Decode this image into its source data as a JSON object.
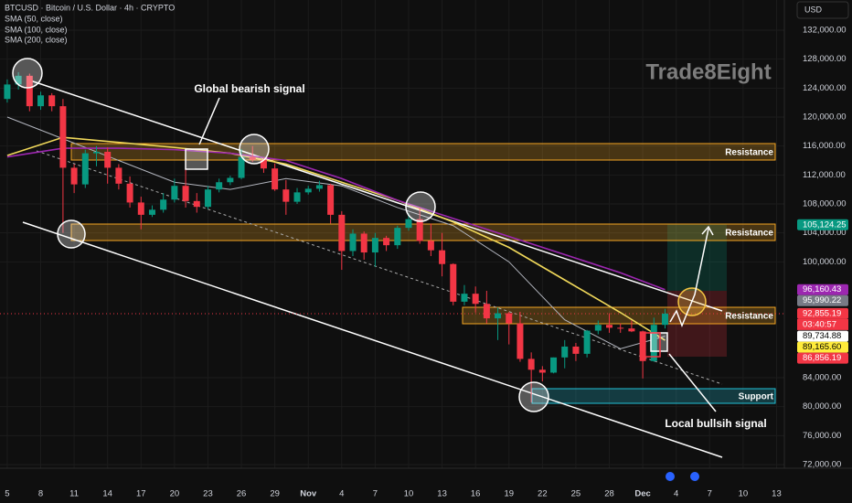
{
  "chart_data": {
    "type": "candlestick",
    "header": [
      "BTCUSD · Bitcoin / U.S. Dollar · 4h · CRYPTO",
      "SMA (50, close)",
      "SMA (100, close)",
      "SMA (200, close)"
    ],
    "currency": "USD",
    "watermark": "Trade8Eight",
    "up_color": "#089981",
    "down_color": "#f23645",
    "xlim": [
      -0.65,
      69.7
    ],
    "ylim": [
      71495,
      136168
    ],
    "xticks": [
      {
        "value": 0,
        "label": "5"
      },
      {
        "value": 3,
        "label": "8"
      },
      {
        "value": 6,
        "label": "11"
      },
      {
        "value": 9,
        "label": "14"
      },
      {
        "value": 12,
        "label": "17"
      },
      {
        "value": 15,
        "label": "20"
      },
      {
        "value": 18,
        "label": "23"
      },
      {
        "value": 21,
        "label": "26"
      },
      {
        "value": 24,
        "label": "29"
      },
      {
        "value": 27,
        "label": "Nov"
      },
      {
        "value": 30,
        "label": "4"
      },
      {
        "value": 33,
        "label": "7"
      },
      {
        "value": 36,
        "label": "10"
      },
      {
        "value": 39,
        "label": "13"
      },
      {
        "value": 42,
        "label": "16"
      },
      {
        "value": 45,
        "label": "19"
      },
      {
        "value": 48,
        "label": "22"
      },
      {
        "value": 51,
        "label": "25"
      },
      {
        "value": 54,
        "label": "28"
      },
      {
        "value": 57,
        "label": "Dec"
      },
      {
        "value": 60,
        "label": "4"
      },
      {
        "value": 63,
        "label": "7"
      },
      {
        "value": 66,
        "label": "10"
      },
      {
        "value": 69,
        "label": "13"
      }
    ],
    "yticks": [
      {
        "value": 132000,
        "label": "132,000.00"
      },
      {
        "value": 128000,
        "label": "128,000.00"
      },
      {
        "value": 124000,
        "label": "124,000.00"
      },
      {
        "value": 120000,
        "label": "120,000.00"
      },
      {
        "value": 116000,
        "label": "116,000.00"
      },
      {
        "value": 112000,
        "label": "112,000.00"
      },
      {
        "value": 108000,
        "label": "108,000.00"
      },
      {
        "value": 104000,
        "label": "104,000.00"
      },
      {
        "value": 100000,
        "label": "100,000.00"
      },
      {
        "value": 84000,
        "label": "84,000.00"
      },
      {
        "value": 80000,
        "label": "80,000.00"
      },
      {
        "value": 76000,
        "label": "76,000.00"
      },
      {
        "value": 72000,
        "label": "72,000.00"
      }
    ],
    "candles": [
      [
        0,
        122500,
        125200,
        122000,
        124500
      ],
      [
        1,
        124500,
        126200,
        123800,
        125700
      ],
      [
        2,
        125700,
        126000,
        120800,
        121500
      ],
      [
        3,
        121500,
        123500,
        121000,
        123000
      ],
      [
        4,
        123000,
        123300,
        120800,
        121500
      ],
      [
        5,
        121500,
        122500,
        104000,
        113000
      ],
      [
        6,
        113000,
        113500,
        109500,
        110700
      ],
      [
        7,
        110700,
        115500,
        110200,
        115000
      ],
      [
        8,
        115000,
        116000,
        113200,
        115200
      ],
      [
        9,
        115200,
        115800,
        110800,
        113000
      ],
      [
        10,
        113000,
        113500,
        110000,
        110800
      ],
      [
        11,
        110800,
        111800,
        107500,
        108200
      ],
      [
        12,
        108200,
        109000,
        104500,
        106500
      ],
      [
        13,
        106500,
        107800,
        106200,
        107200
      ],
      [
        14,
        107200,
        109500,
        106800,
        108600
      ],
      [
        15,
        108600,
        111500,
        108200,
        110500
      ],
      [
        16,
        110500,
        114000,
        107500,
        108400
      ],
      [
        17,
        108400,
        109500,
        106800,
        107600
      ],
      [
        18,
        107600,
        110500,
        107300,
        110000
      ],
      [
        19,
        110000,
        111500,
        109600,
        111000
      ],
      [
        20,
        111000,
        111900,
        110600,
        111600
      ],
      [
        21,
        111600,
        115600,
        111400,
        114500
      ],
      [
        22,
        114500,
        116000,
        113800,
        114100
      ],
      [
        23,
        114100,
        114400,
        112300,
        112900
      ],
      [
        24,
        112900,
        113600,
        109800,
        110000
      ],
      [
        25,
        110000,
        111300,
        106500,
        108300
      ],
      [
        26,
        108300,
        110200,
        108000,
        109600
      ],
      [
        27,
        109600,
        110500,
        109300,
        110100
      ],
      [
        28,
        110100,
        111200,
        109700,
        110600
      ],
      [
        29,
        110600,
        110800,
        105300,
        106500
      ],
      [
        30,
        106500,
        107000,
        98900,
        101500
      ],
      [
        31,
        101500,
        104500,
        100800,
        103900
      ],
      [
        32,
        103900,
        104200,
        100300,
        101300
      ],
      [
        33,
        101300,
        104000,
        99300,
        103300
      ],
      [
        34,
        103300,
        103600,
        101500,
        102300
      ],
      [
        35,
        102300,
        105000,
        101800,
        104700
      ],
      [
        36,
        104700,
        106700,
        104300,
        105900
      ],
      [
        37,
        105900,
        107500,
        102500,
        102900
      ],
      [
        38,
        102900,
        105300,
        100800,
        101600
      ],
      [
        39,
        101600,
        104000,
        98000,
        99700
      ],
      [
        40,
        99700,
        99800,
        94000,
        94500
      ],
      [
        41,
        94500,
        96800,
        94000,
        95600
      ],
      [
        42,
        95600,
        96600,
        93000,
        94200
      ],
      [
        43,
        94200,
        96000,
        91500,
        92200
      ],
      [
        44,
        92200,
        93700,
        89200,
        92900
      ],
      [
        45,
        92900,
        93100,
        88600,
        91500
      ],
      [
        46,
        91500,
        93100,
        86200,
        86600
      ],
      [
        47,
        86600,
        87500,
        80600,
        85100
      ],
      [
        48,
        85100,
        85600,
        83500,
        84700
      ],
      [
        49,
        84700,
        86800,
        84600,
        86800
      ],
      [
        50,
        86800,
        89200,
        85300,
        88300
      ],
      [
        51,
        88300,
        88800,
        86300,
        87300
      ],
      [
        52,
        87300,
        90600,
        86800,
        90500
      ],
      [
        53,
        90500,
        91900,
        90000,
        91300
      ],
      [
        54,
        91300,
        92900,
        90200,
        90900
      ],
      [
        55,
        90900,
        91500,
        90200,
        90800
      ],
      [
        56,
        90800,
        91900,
        90300,
        90400
      ],
      [
        57,
        90400,
        90500,
        83900,
        86300
      ],
      [
        58,
        86300,
        92300,
        86200,
        91300
      ],
      [
        59,
        91300,
        93500,
        90800,
        92855.19
      ]
    ],
    "sma_x": [
      0,
      5,
      10,
      15,
      20,
      25,
      30,
      35,
      40,
      45,
      50,
      55,
      59
    ],
    "series": [
      {
        "name": "SMA (50, close)",
        "color": "#b2b5be",
        "values": [
          120000,
          117000,
          114000,
          111000,
          110000,
          111500,
          110500,
          107500,
          105000,
          100000,
          92000,
          88000,
          89734.88
        ]
      },
      {
        "name": "SMA (100, close)",
        "color": "#f0d85a",
        "values": [
          114700,
          117200,
          116500,
          115800,
          115000,
          113500,
          111000,
          108500,
          105500,
          102000,
          97500,
          93000,
          89165.6
        ]
      },
      {
        "name": "SMA (200, close)",
        "color": "#9c27b0",
        "values": [
          114500,
          115700,
          115700,
          115500,
          115000,
          114000,
          111500,
          108500,
          106000,
          103500,
          101000,
          98500,
          96160.43
        ]
      }
    ],
    "badges": [
      {
        "value": 105124.25,
        "label": "105,124.25",
        "color": "#089981"
      },
      {
        "value": 96160.43,
        "label": "96,160.43",
        "color": "#9c27b0"
      },
      {
        "value": 95990.22,
        "label": "95,990.22",
        "color": "#787b86"
      },
      {
        "value": 92855.19,
        "label": "92,855.19",
        "color": "#f23645"
      },
      {
        "value": 89734.88,
        "label": "89,734.88",
        "color": "#ffffff"
      },
      {
        "value": 89165.6,
        "label": "89,165.60",
        "color": "#ffeb3b"
      },
      {
        "value": 86856.19,
        "label": "86,856.19",
        "color": "#f23645"
      }
    ],
    "countdown": "03:40:57",
    "zones": [
      "Resistance",
      "Resistance",
      "Resistance",
      "Support"
    ],
    "annotations": [
      "Global bearish signal",
      "Local bullsih signal"
    ]
  }
}
